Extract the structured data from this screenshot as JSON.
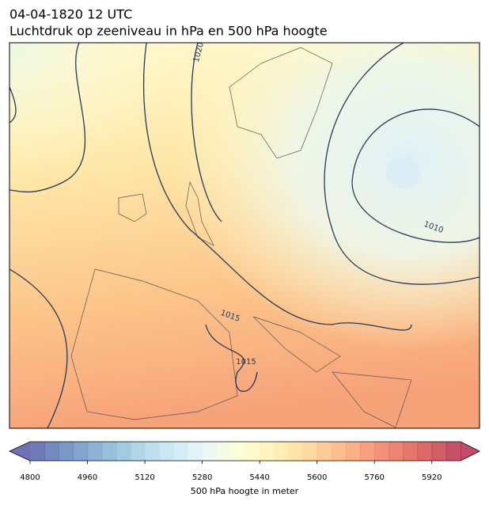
{
  "header": {
    "title": "04-04-1820 12 UTC",
    "subtitle": "Luchtdruk op zeeniveau in hPa en 500 hPa hoogte"
  },
  "map": {
    "contour_labels": [
      1020,
      1010,
      1015,
      1015
    ]
  },
  "colorbar": {
    "label": "500 hPa hoogte in meter",
    "range": [
      4800,
      6000
    ],
    "step": 40,
    "ticks": [
      4800,
      4960,
      5120,
      5280,
      5440,
      5600,
      5760,
      5920
    ],
    "colormap": [
      "#313695",
      "#4575b4",
      "#74add1",
      "#abd9e9",
      "#e0f3f8",
      "#ffffbf",
      "#fee090",
      "#fdae61",
      "#f46d43",
      "#d73027",
      "#a50026"
    ]
  }
}
